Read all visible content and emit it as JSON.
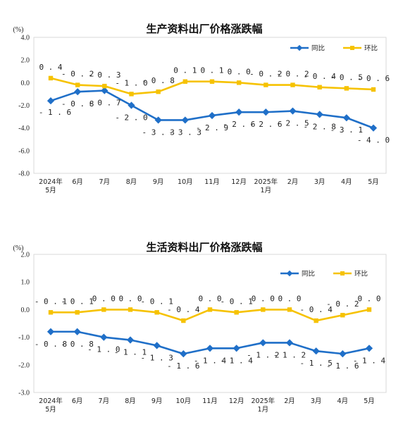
{
  "colors": {
    "yoy": "#1f6fc8",
    "mom": "#f6c200",
    "frame": "#d9d9d9"
  },
  "chart_data": [
    {
      "type": "line",
      "title": "生产资料出厂价格涨跌幅",
      "unit_label": "(%)",
      "ylim": [
        -8.0,
        4.0
      ],
      "yticks": [
        "4.0",
        "2.0",
        "0.0",
        "-2.0",
        "-4.0",
        "-6.0",
        "-8.0"
      ],
      "ytick_values": [
        4,
        2,
        0,
        -2,
        -4,
        -6,
        -8
      ],
      "categories": [
        [
          "2024年",
          "5月"
        ],
        [
          "6月"
        ],
        [
          "7月"
        ],
        [
          "8月"
        ],
        [
          "9月"
        ],
        [
          "10月"
        ],
        [
          "11月"
        ],
        [
          "12月"
        ],
        [
          "2025年",
          "1月"
        ],
        [
          "2月"
        ],
        [
          "3月"
        ],
        [
          "4月"
        ],
        [
          "5月"
        ]
      ],
      "legend_position": "top-right",
      "series": [
        {
          "name": "同比",
          "color_key": "yoy",
          "values": [
            -1.6,
            -0.8,
            -0.7,
            -2.0,
            -3.3,
            -3.3,
            -2.9,
            -2.6,
            -2.6,
            -2.5,
            -2.8,
            -3.1,
            -4.0
          ],
          "labels": [
            "-1.6",
            "-0.8",
            "-0.7",
            "-2.0",
            "-3.3",
            "-3.3",
            "-2.9",
            "-2.6",
            "-2.6",
            "-2.5",
            "-2.8",
            "-3.1",
            "-4.0"
          ],
          "label_position": [
            "left",
            "below",
            "below",
            "below",
            "below",
            "below",
            "below",
            "below",
            "below",
            "below",
            "below",
            "below",
            "below"
          ]
        },
        {
          "name": "环比",
          "color_key": "mom",
          "values": [
            0.4,
            -0.2,
            -0.3,
            -1.0,
            -0.8,
            0.1,
            0.1,
            0.0,
            -0.2,
            -0.2,
            -0.4,
            -0.5,
            -0.6
          ],
          "labels": [
            "0.4",
            "-0.2",
            "-0.3",
            "-1.0",
            "-0.8",
            "0.1",
            "0.1",
            "0.0",
            "-0.2",
            "-0.2",
            "-0.4",
            "-0.5",
            "-0.6"
          ],
          "label_position": [
            "above",
            "above",
            "above",
            "above",
            "above",
            "above",
            "above",
            "above",
            "above",
            "above",
            "above",
            "above",
            "above"
          ]
        }
      ]
    },
    {
      "type": "line",
      "title": "生活资料出厂价格涨跌幅",
      "unit_label": "(%)",
      "ylim": [
        -3.0,
        2.0
      ],
      "yticks": [
        "2.0",
        "1.0",
        "0.0",
        "-1.0",
        "-2.0",
        "-3.0"
      ],
      "ytick_values": [
        2,
        1,
        0,
        -1,
        -2,
        -3
      ],
      "categories": [
        [
          "2024年",
          "5月"
        ],
        [
          "6月"
        ],
        [
          "7月"
        ],
        [
          "8月"
        ],
        [
          "9月"
        ],
        [
          "10月"
        ],
        [
          "11月"
        ],
        [
          "12月"
        ],
        [
          "2025年",
          "1月"
        ],
        [
          "2月"
        ],
        [
          "3月"
        ],
        [
          "4月"
        ],
        [
          "5月"
        ]
      ],
      "legend_position": "top-right",
      "series": [
        {
          "name": "同比",
          "color_key": "yoy",
          "values": [
            -0.8,
            -0.8,
            -1.0,
            -1.1,
            -1.3,
            -1.6,
            -1.4,
            -1.4,
            -1.2,
            -1.2,
            -1.5,
            -1.6,
            -1.4
          ],
          "labels": [
            "-0.8",
            "-0.8",
            "-1.0",
            "-1.1",
            "-1.3",
            "-1.6",
            "-1.4",
            "-1.4",
            "-1.2",
            "-1.2",
            "-1.5",
            "-1.6",
            "-1.4"
          ],
          "label_position": [
            "below",
            "below",
            "below",
            "below",
            "below",
            "below",
            "below",
            "below",
            "below",
            "below",
            "below",
            "below",
            "below"
          ]
        },
        {
          "name": "环比",
          "color_key": "mom",
          "values": [
            -0.1,
            -0.1,
            0.0,
            0.0,
            -0.1,
            -0.4,
            0.0,
            -0.1,
            0.0,
            0.0,
            -0.4,
            -0.2,
            0.0
          ],
          "labels": [
            "-0.1",
            "-0.1",
            "0.0",
            "0.0",
            "-0.1",
            "-0.4",
            "0.0",
            "-0.1",
            "0.0",
            "0.0",
            "-0.4",
            "-0.2",
            "0.0"
          ],
          "label_position": [
            "above",
            "above",
            "above",
            "above",
            "above",
            "above",
            "above",
            "above",
            "above",
            "above",
            "above",
            "above",
            "above"
          ]
        }
      ]
    }
  ]
}
